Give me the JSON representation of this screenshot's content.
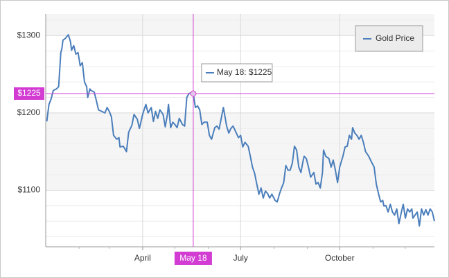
{
  "chart_data": {
    "type": "line",
    "x": [
      1,
      3,
      5,
      7,
      10,
      12,
      14,
      15,
      16,
      18,
      21,
      23,
      24,
      26,
      28,
      30,
      32,
      34,
      36,
      38,
      39,
      41,
      42,
      45,
      47,
      49,
      52,
      55,
      57,
      59,
      61,
      63,
      66,
      68,
      69,
      72,
      75,
      77,
      80,
      82,
      85,
      87,
      90,
      93,
      95,
      98,
      100,
      102,
      104,
      106,
      109,
      111,
      113,
      114,
      116,
      118,
      120,
      122,
      124,
      127,
      129,
      131,
      133,
      135,
      137,
      139,
      141,
      143,
      145,
      147,
      150,
      152,
      154,
      157,
      159,
      161,
      163,
      165,
      168,
      170,
      172,
      174,
      177,
      179,
      181,
      183,
      185,
      188,
      190,
      192,
      194,
      196,
      198,
      200,
      202,
      204,
      206,
      208,
      210,
      213,
      215,
      217,
      219,
      221,
      223,
      225,
      227,
      229,
      231,
      233,
      235,
      237,
      239,
      240,
      242,
      244,
      246,
      249,
      251,
      253,
      255,
      257,
      258,
      260,
      263,
      265,
      267,
      269,
      271,
      273,
      276,
      278,
      280,
      282,
      284,
      285,
      287,
      289,
      291,
      293,
      295,
      297,
      300,
      302,
      305,
      307,
      309,
      311,
      313,
      314,
      316,
      318,
      320,
      322,
      324,
      326,
      328,
      330,
      332,
      334,
      336,
      338,
      340,
      341,
      343,
      345,
      347,
      349,
      351,
      353,
      355,
      357,
      359,
      361
    ],
    "series": [
      {
        "name": "Gold Price",
        "color": "#4a7ebb",
        "values": [
          1189,
          1211,
          1218,
          1229,
          1231,
          1234,
          1278,
          1283,
          1294,
          1296,
          1301,
          1292,
          1281,
          1287,
          1276,
          1278,
          1261,
          1265,
          1240,
          1234,
          1220,
          1231,
          1229,
          1227,
          1216,
          1204,
          1202,
          1200,
          1207,
          1202,
          1195,
          1171,
          1166,
          1168,
          1156,
          1157,
          1150,
          1175,
          1184,
          1198,
          1192,
          1180,
          1198,
          1211,
          1200,
          1207,
          1189,
          1202,
          1193,
          1204,
          1198,
          1182,
          1198,
          1211,
          1181,
          1188,
          1185,
          1181,
          1193,
          1185,
          1183,
          1220,
          1225,
          1226,
          1225,
          1207,
          1209,
          1204,
          1185,
          1188,
          1188,
          1171,
          1166,
          1181,
          1183,
          1179,
          1193,
          1207,
          1183,
          1174,
          1180,
          1183,
          1174,
          1168,
          1171,
          1156,
          1162,
          1157,
          1144,
          1130,
          1122,
          1108,
          1095,
          1103,
          1090,
          1099,
          1096,
          1090,
          1095,
          1087,
          1085,
          1095,
          1103,
          1110,
          1132,
          1126,
          1126,
          1135,
          1157,
          1152,
          1130,
          1123,
          1138,
          1144,
          1141,
          1130,
          1117,
          1123,
          1108,
          1110,
          1103,
          1123,
          1152,
          1144,
          1141,
          1130,
          1139,
          1126,
          1110,
          1130,
          1144,
          1156,
          1157,
          1171,
          1166,
          1181,
          1174,
          1171,
          1166,
          1171,
          1162,
          1150,
          1144,
          1138,
          1130,
          1108,
          1096,
          1085,
          1087,
          1080,
          1080,
          1072,
          1082,
          1072,
          1068,
          1076,
          1057,
          1070,
          1082,
          1064,
          1076,
          1072,
          1076,
          1064,
          1068,
          1072,
          1054,
          1076,
          1068,
          1075,
          1068,
          1076,
          1072,
          1060
        ]
      }
    ],
    "xlim": [
      0,
      361
    ],
    "xticks": [
      {
        "value": 90,
        "label": "April"
      },
      {
        "value": 181,
        "label": "July"
      },
      {
        "value": 273,
        "label": "October"
      }
    ],
    "minor_xticks": [
      31,
      59,
      120,
      151,
      212,
      243,
      304,
      334
    ],
    "ylim": [
      1027,
      1328
    ],
    "yticks": [
      {
        "value": 1100,
        "label": "$1100"
      },
      {
        "value": 1200,
        "label": "$1200"
      },
      {
        "value": 1300,
        "label": "$1300"
      }
    ],
    "minor_yticks": [
      1040,
      1060,
      1080,
      1120,
      1140,
      1160,
      1180,
      1220,
      1240,
      1260,
      1280,
      1320
    ],
    "grid": true,
    "legend": "top-right",
    "crosshair": {
      "x": 137,
      "x_label": "May 18",
      "y": 1225,
      "y_label": "$1225",
      "color": "#d23cd2",
      "tooltip": "May 18: $1225"
    }
  }
}
